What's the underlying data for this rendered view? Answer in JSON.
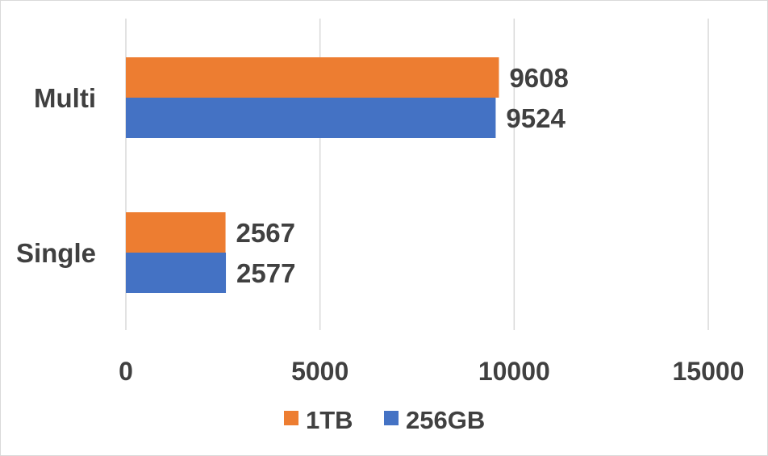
{
  "chart_data": {
    "type": "bar",
    "orientation": "horizontal",
    "categories": [
      "Multi",
      "Single"
    ],
    "series": [
      {
        "name": "1TB",
        "color": "#ED7D31",
        "values": [
          9608,
          2567
        ]
      },
      {
        "name": "256GB",
        "color": "#4472C4",
        "values": [
          9524,
          2577
        ]
      }
    ],
    "xlim": [
      0,
      15000
    ],
    "xticks": [
      0,
      5000,
      10000,
      15000
    ],
    "tick_labels": [
      "0",
      "5000",
      "10000",
      "15000"
    ],
    "grid": true,
    "legend": "bottom",
    "data_labels": true
  }
}
